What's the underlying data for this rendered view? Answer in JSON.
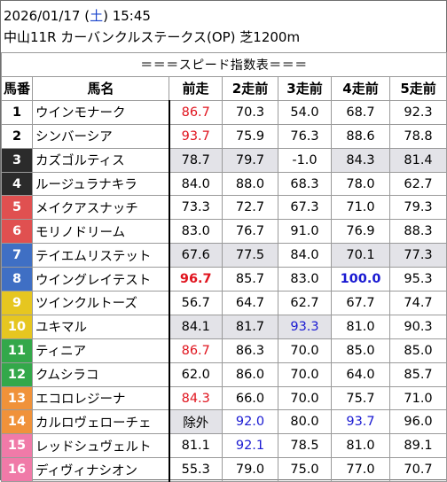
{
  "header": {
    "date": "2026/01/17 (",
    "weekday": "土",
    "time_suffix": ") 15:45",
    "race": "中山11R カーバンクルステークス(OP) 芝1200m"
  },
  "table": {
    "title": "＝＝＝スピード指数表＝＝＝",
    "columns": [
      "馬番",
      "馬名",
      "前走",
      "2走前",
      "3走前",
      "4走前",
      "5走前"
    ],
    "rows": [
      {
        "no": "1",
        "name": "ウインモナーク",
        "bg": "#ffffff",
        "fg": "#000000",
        "v": [
          "86.7",
          "70.3",
          "54.0",
          "68.7",
          "92.3"
        ],
        "c": [
          "red",
          "",
          "",
          "",
          ""
        ],
        "g": [
          0,
          0,
          0,
          0,
          0
        ]
      },
      {
        "no": "2",
        "name": "シンバーシア",
        "bg": "#ffffff",
        "fg": "#000000",
        "v": [
          "93.7",
          "75.9",
          "76.3",
          "88.6",
          "78.8"
        ],
        "c": [
          "red",
          "",
          "",
          "",
          ""
        ],
        "g": [
          0,
          0,
          0,
          0,
          0
        ]
      },
      {
        "no": "3",
        "name": "カズゴルティス",
        "bg": "#2b2b2b",
        "fg": "#ffffff",
        "v": [
          "78.7",
          "79.7",
          "-1.0",
          "84.3",
          "81.4"
        ],
        "c": [
          "",
          "",
          "",
          "",
          ""
        ],
        "g": [
          1,
          1,
          0,
          1,
          1
        ]
      },
      {
        "no": "4",
        "name": "ルージュラナキラ",
        "bg": "#2b2b2b",
        "fg": "#ffffff",
        "v": [
          "84.0",
          "88.0",
          "68.3",
          "78.0",
          "62.7"
        ],
        "c": [
          "",
          "",
          "",
          "",
          ""
        ],
        "g": [
          0,
          0,
          0,
          0,
          0
        ]
      },
      {
        "no": "5",
        "name": "メイクアスナッチ",
        "bg": "#e05050",
        "fg": "#ffffff",
        "v": [
          "73.3",
          "72.7",
          "67.3",
          "71.0",
          "79.3"
        ],
        "c": [
          "",
          "",
          "",
          "",
          ""
        ],
        "g": [
          0,
          0,
          0,
          0,
          0
        ]
      },
      {
        "no": "6",
        "name": "モリノドリーム",
        "bg": "#e05050",
        "fg": "#ffffff",
        "v": [
          "83.0",
          "76.7",
          "91.0",
          "76.9",
          "88.3"
        ],
        "c": [
          "",
          "",
          "",
          "",
          ""
        ],
        "g": [
          0,
          0,
          0,
          0,
          0
        ]
      },
      {
        "no": "7",
        "name": "テイエムリステット",
        "bg": "#3f6fc4",
        "fg": "#ffffff",
        "v": [
          "67.6",
          "77.5",
          "84.0",
          "70.1",
          "77.3"
        ],
        "c": [
          "",
          "",
          "",
          "",
          ""
        ],
        "g": [
          1,
          1,
          0,
          1,
          1
        ]
      },
      {
        "no": "8",
        "name": "ウイングレイテスト",
        "bg": "#3f6fc4",
        "fg": "#ffffff",
        "v": [
          "96.7",
          "85.7",
          "83.0",
          "100.0",
          "95.3"
        ],
        "c": [
          "bred",
          "",
          "",
          "bblue",
          ""
        ],
        "g": [
          0,
          0,
          0,
          0,
          0
        ]
      },
      {
        "no": "9",
        "name": "ツインクルトーズ",
        "bg": "#e6c620",
        "fg": "#ffffff",
        "v": [
          "56.7",
          "64.7",
          "62.7",
          "67.7",
          "74.7"
        ],
        "c": [
          "",
          "",
          "",
          "",
          ""
        ],
        "g": [
          0,
          0,
          0,
          0,
          0
        ]
      },
      {
        "no": "10",
        "name": "ユキマル",
        "bg": "#e6c620",
        "fg": "#ffffff",
        "v": [
          "84.1",
          "81.7",
          "93.3",
          "81.0",
          "90.3"
        ],
        "c": [
          "",
          "",
          "blue",
          "",
          ""
        ],
        "g": [
          1,
          1,
          1,
          0,
          0
        ]
      },
      {
        "no": "11",
        "name": "ティニア",
        "bg": "#33a84a",
        "fg": "#ffffff",
        "v": [
          "86.7",
          "86.3",
          "70.0",
          "85.0",
          "85.0"
        ],
        "c": [
          "red",
          "",
          "",
          "",
          ""
        ],
        "g": [
          0,
          0,
          0,
          0,
          0
        ]
      },
      {
        "no": "12",
        "name": "クムシラコ",
        "bg": "#33a84a",
        "fg": "#ffffff",
        "v": [
          "62.0",
          "86.0",
          "70.0",
          "64.0",
          "85.7"
        ],
        "c": [
          "",
          "",
          "",
          "",
          ""
        ],
        "g": [
          0,
          0,
          0,
          0,
          0
        ]
      },
      {
        "no": "13",
        "name": "エコロレジーナ",
        "bg": "#f0923a",
        "fg": "#ffffff",
        "v": [
          "84.3",
          "66.0",
          "70.0",
          "75.7",
          "71.0"
        ],
        "c": [
          "red",
          "",
          "",
          "",
          ""
        ],
        "g": [
          0,
          0,
          0,
          0,
          0
        ]
      },
      {
        "no": "14",
        "name": "カルロヴェローチェ",
        "bg": "#f0923a",
        "fg": "#ffffff",
        "v": [
          "除外",
          "92.0",
          "80.0",
          "93.7",
          "96.0"
        ],
        "c": [
          "",
          "blue",
          "",
          "blue",
          ""
        ],
        "g": [
          1,
          0,
          0,
          0,
          0
        ]
      },
      {
        "no": "15",
        "name": "レッドシュヴェルト",
        "bg": "#f07aa8",
        "fg": "#ffffff",
        "v": [
          "81.1",
          "92.1",
          "78.5",
          "81.0",
          "89.1"
        ],
        "c": [
          "",
          "blue",
          "",
          "",
          ""
        ],
        "g": [
          0,
          0,
          0,
          0,
          0
        ]
      },
      {
        "no": "16",
        "name": "ディヴィナシオン",
        "bg": "#f07aa8",
        "fg": "#ffffff",
        "v": [
          "55.3",
          "79.0",
          "75.0",
          "77.0",
          "70.7"
        ],
        "c": [
          "",
          "",
          "",
          "",
          ""
        ],
        "g": [
          0,
          0,
          0,
          0,
          0
        ]
      }
    ]
  }
}
